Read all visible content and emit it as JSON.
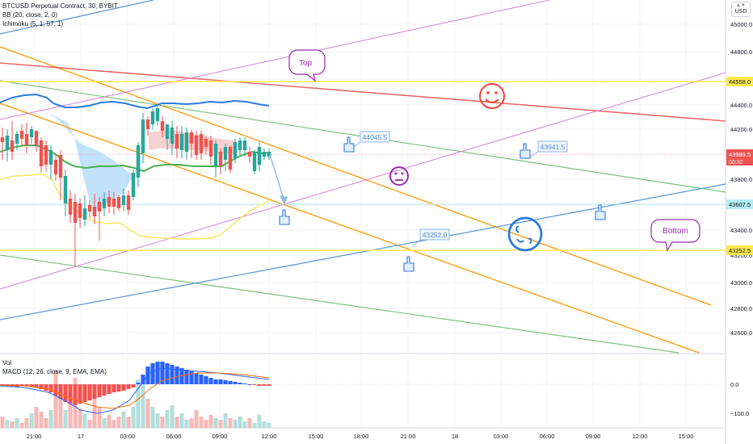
{
  "header": {
    "symbol_line": "BTCUSD Perpetual Contract, 30, BYBIT",
    "bb_line": "BB (20, close, 2, 0)",
    "ichimoku_line": "Ichimoku (5, 1, 57, 1)"
  },
  "currency_button": {
    "label": "USD",
    "icon": "chevron-down-icon"
  },
  "price_axis": {
    "ticks": [
      "45000.0",
      "44800.0",
      "44600.0",
      "44400.0",
      "44200.0",
      "44000.0",
      "43800.0",
      "43600.0",
      "43400.0",
      "43200.0",
      "43000.0",
      "42800.0",
      "42600.0"
    ]
  },
  "price_labels": [
    {
      "name": "price-label-44558",
      "text": "44558.0",
      "bg": "#fbe94b",
      "color": "#131722"
    },
    {
      "name": "price-label-current",
      "text": "43989.5",
      "sub": "00:32",
      "bg": "#ef5350",
      "color": "#ffffff"
    },
    {
      "name": "price-label-43607",
      "text": "43607.5",
      "bg": "#b2ebf2",
      "color": "#131722"
    },
    {
      "name": "price-label-43252",
      "text": "43252.5",
      "bg": "#fbe94b",
      "color": "#131722"
    }
  ],
  "annotations": [
    {
      "name": "callout-top",
      "text": "Top"
    },
    {
      "name": "callout-bottom",
      "text": "Bottom"
    },
    {
      "name": "price-note-44045",
      "text": "44045.5"
    },
    {
      "name": "price-note-43941",
      "text": "43941.5"
    },
    {
      "name": "price-note-43252",
      "text": "43252.0"
    }
  ],
  "emoji": [
    {
      "name": "happy-face-icon",
      "color": "#f44336"
    },
    {
      "name": "neutral-face-icon",
      "color": "#9c27b0"
    },
    {
      "name": "dizzy-face-icon",
      "color": "#2a7bde"
    }
  ],
  "lower_pane": {
    "vol_label": "Vol",
    "macd_label": "MACD (12, 26, close, 9, EMA, EMA)",
    "ticks": [
      "0.0",
      "−100.0"
    ]
  },
  "time_axis": {
    "ticks": [
      "21:00",
      "17",
      "03:00",
      "06:00",
      "09:00",
      "12:00",
      "15:00",
      "18:00",
      "21:00",
      "18",
      "03:00",
      "06:00",
      "09:00",
      "12:00",
      "15:00"
    ]
  },
  "colors": {
    "up": "#26a69a",
    "down": "#ef5350",
    "bb": "#2a7bde",
    "ma": "#4caf50",
    "yellow": "#fbe94b",
    "orange": "#ff9800",
    "violet": "#dd88dd",
    "blue_line": "#5b9bd5"
  }
}
